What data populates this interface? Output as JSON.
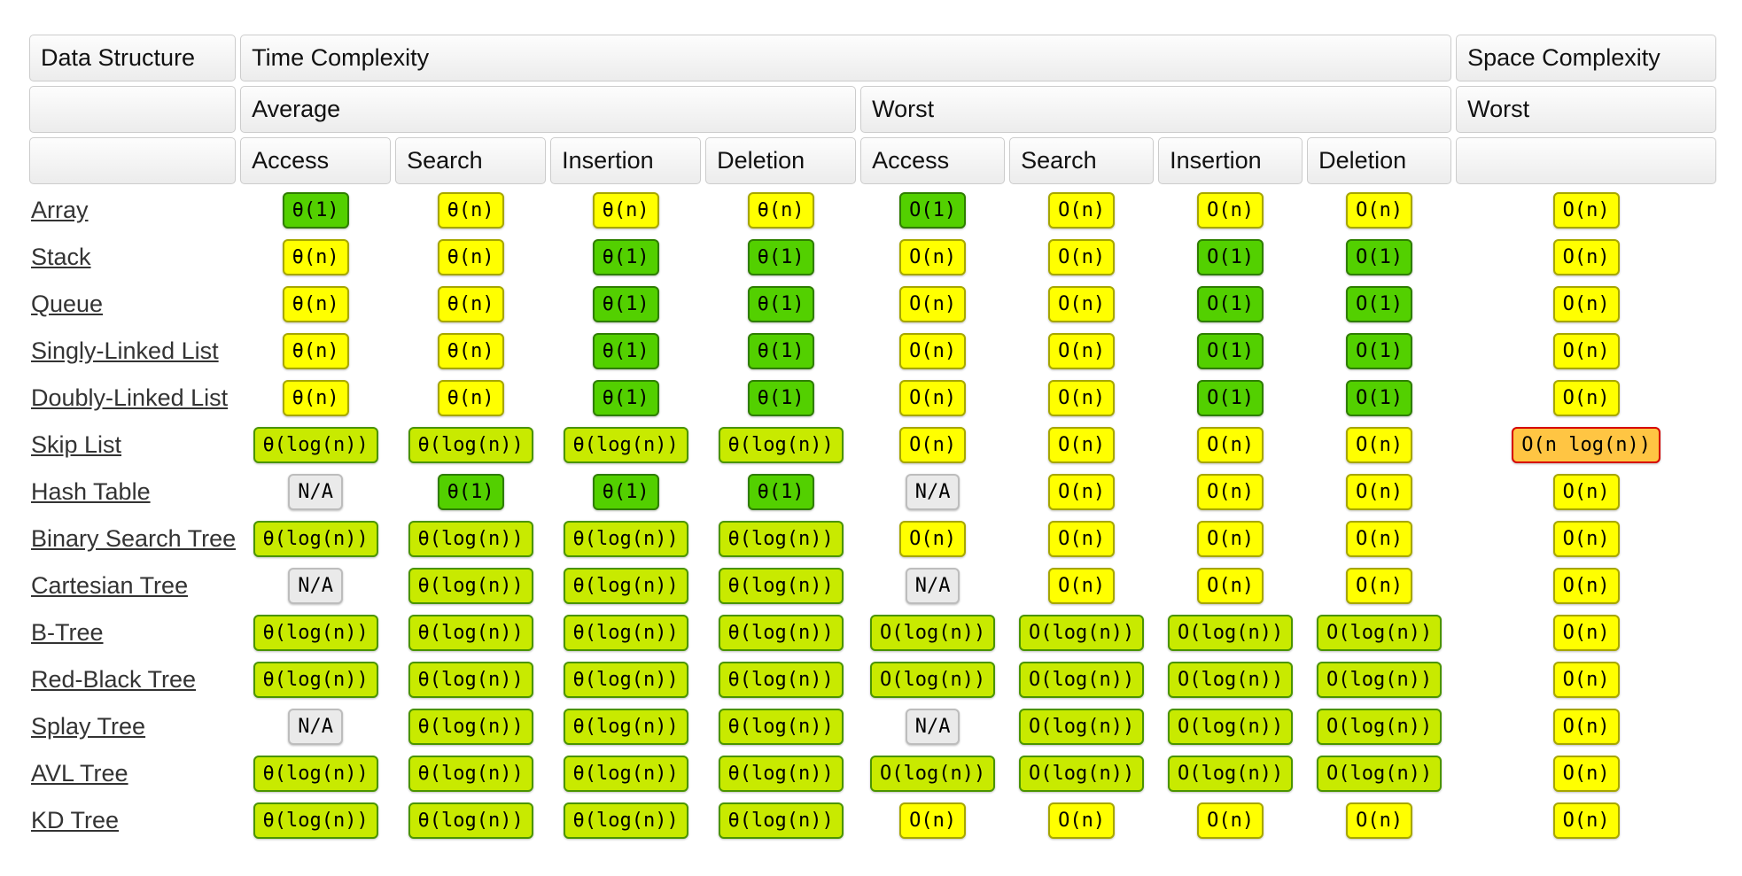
{
  "header": {
    "data_structure": "Data Structure",
    "time_complexity": "Time Complexity",
    "space_complexity": "Space Complexity",
    "average": "Average",
    "worst_time": "Worst",
    "worst_space": "Worst",
    "operations": [
      "Access",
      "Search",
      "Insertion",
      "Deletion",
      "Access",
      "Search",
      "Insertion",
      "Deletion"
    ]
  },
  "colors": {
    "excellent": {
      "bg": "#53d000",
      "border": "#2e7d00"
    },
    "good": {
      "bg": "#c8ea00",
      "border": "#4a9400"
    },
    "fair": {
      "bg": "#ffff00",
      "border": "#a6a600"
    },
    "bad": {
      "bg": "#ffc543",
      "border": "#d60000"
    },
    "na": {
      "bg": "#eaeaea",
      "border": "#bdbdbd"
    }
  },
  "rows": [
    {
      "label": "Array",
      "cells": [
        [
          "θ(1)",
          "excellent"
        ],
        [
          "θ(n)",
          "fair"
        ],
        [
          "θ(n)",
          "fair"
        ],
        [
          "θ(n)",
          "fair"
        ],
        [
          "O(1)",
          "excellent"
        ],
        [
          "O(n)",
          "fair"
        ],
        [
          "O(n)",
          "fair"
        ],
        [
          "O(n)",
          "fair"
        ],
        [
          "O(n)",
          "fair"
        ]
      ]
    },
    {
      "label": "Stack",
      "cells": [
        [
          "θ(n)",
          "fair"
        ],
        [
          "θ(n)",
          "fair"
        ],
        [
          "θ(1)",
          "excellent"
        ],
        [
          "θ(1)",
          "excellent"
        ],
        [
          "O(n)",
          "fair"
        ],
        [
          "O(n)",
          "fair"
        ],
        [
          "O(1)",
          "excellent"
        ],
        [
          "O(1)",
          "excellent"
        ],
        [
          "O(n)",
          "fair"
        ]
      ]
    },
    {
      "label": "Queue",
      "cells": [
        [
          "θ(n)",
          "fair"
        ],
        [
          "θ(n)",
          "fair"
        ],
        [
          "θ(1)",
          "excellent"
        ],
        [
          "θ(1)",
          "excellent"
        ],
        [
          "O(n)",
          "fair"
        ],
        [
          "O(n)",
          "fair"
        ],
        [
          "O(1)",
          "excellent"
        ],
        [
          "O(1)",
          "excellent"
        ],
        [
          "O(n)",
          "fair"
        ]
      ]
    },
    {
      "label": "Singly-Linked List",
      "cells": [
        [
          "θ(n)",
          "fair"
        ],
        [
          "θ(n)",
          "fair"
        ],
        [
          "θ(1)",
          "excellent"
        ],
        [
          "θ(1)",
          "excellent"
        ],
        [
          "O(n)",
          "fair"
        ],
        [
          "O(n)",
          "fair"
        ],
        [
          "O(1)",
          "excellent"
        ],
        [
          "O(1)",
          "excellent"
        ],
        [
          "O(n)",
          "fair"
        ]
      ]
    },
    {
      "label": "Doubly-Linked List",
      "cells": [
        [
          "θ(n)",
          "fair"
        ],
        [
          "θ(n)",
          "fair"
        ],
        [
          "θ(1)",
          "excellent"
        ],
        [
          "θ(1)",
          "excellent"
        ],
        [
          "O(n)",
          "fair"
        ],
        [
          "O(n)",
          "fair"
        ],
        [
          "O(1)",
          "excellent"
        ],
        [
          "O(1)",
          "excellent"
        ],
        [
          "O(n)",
          "fair"
        ]
      ]
    },
    {
      "label": "Skip List",
      "cells": [
        [
          "θ(log(n))",
          "good"
        ],
        [
          "θ(log(n))",
          "good"
        ],
        [
          "θ(log(n))",
          "good"
        ],
        [
          "θ(log(n))",
          "good"
        ],
        [
          "O(n)",
          "fair"
        ],
        [
          "O(n)",
          "fair"
        ],
        [
          "O(n)",
          "fair"
        ],
        [
          "O(n)",
          "fair"
        ],
        [
          "O(n log(n))",
          "bad"
        ]
      ]
    },
    {
      "label": "Hash Table",
      "cells": [
        [
          "N/A",
          "na"
        ],
        [
          "θ(1)",
          "excellent"
        ],
        [
          "θ(1)",
          "excellent"
        ],
        [
          "θ(1)",
          "excellent"
        ],
        [
          "N/A",
          "na"
        ],
        [
          "O(n)",
          "fair"
        ],
        [
          "O(n)",
          "fair"
        ],
        [
          "O(n)",
          "fair"
        ],
        [
          "O(n)",
          "fair"
        ]
      ]
    },
    {
      "label": "Binary Search Tree",
      "cells": [
        [
          "θ(log(n))",
          "good"
        ],
        [
          "θ(log(n))",
          "good"
        ],
        [
          "θ(log(n))",
          "good"
        ],
        [
          "θ(log(n))",
          "good"
        ],
        [
          "O(n)",
          "fair"
        ],
        [
          "O(n)",
          "fair"
        ],
        [
          "O(n)",
          "fair"
        ],
        [
          "O(n)",
          "fair"
        ],
        [
          "O(n)",
          "fair"
        ]
      ]
    },
    {
      "label": "Cartesian Tree",
      "cells": [
        [
          "N/A",
          "na"
        ],
        [
          "θ(log(n))",
          "good"
        ],
        [
          "θ(log(n))",
          "good"
        ],
        [
          "θ(log(n))",
          "good"
        ],
        [
          "N/A",
          "na"
        ],
        [
          "O(n)",
          "fair"
        ],
        [
          "O(n)",
          "fair"
        ],
        [
          "O(n)",
          "fair"
        ],
        [
          "O(n)",
          "fair"
        ]
      ]
    },
    {
      "label": "B-Tree",
      "cells": [
        [
          "θ(log(n))",
          "good"
        ],
        [
          "θ(log(n))",
          "good"
        ],
        [
          "θ(log(n))",
          "good"
        ],
        [
          "θ(log(n))",
          "good"
        ],
        [
          "O(log(n))",
          "good"
        ],
        [
          "O(log(n))",
          "good"
        ],
        [
          "O(log(n))",
          "good"
        ],
        [
          "O(log(n))",
          "good"
        ],
        [
          "O(n)",
          "fair"
        ]
      ]
    },
    {
      "label": "Red-Black Tree",
      "cells": [
        [
          "θ(log(n))",
          "good"
        ],
        [
          "θ(log(n))",
          "good"
        ],
        [
          "θ(log(n))",
          "good"
        ],
        [
          "θ(log(n))",
          "good"
        ],
        [
          "O(log(n))",
          "good"
        ],
        [
          "O(log(n))",
          "good"
        ],
        [
          "O(log(n))",
          "good"
        ],
        [
          "O(log(n))",
          "good"
        ],
        [
          "O(n)",
          "fair"
        ]
      ]
    },
    {
      "label": "Splay Tree",
      "cells": [
        [
          "N/A",
          "na"
        ],
        [
          "θ(log(n))",
          "good"
        ],
        [
          "θ(log(n))",
          "good"
        ],
        [
          "θ(log(n))",
          "good"
        ],
        [
          "N/A",
          "na"
        ],
        [
          "O(log(n))",
          "good"
        ],
        [
          "O(log(n))",
          "good"
        ],
        [
          "O(log(n))",
          "good"
        ],
        [
          "O(n)",
          "fair"
        ]
      ]
    },
    {
      "label": "AVL Tree",
      "cells": [
        [
          "θ(log(n))",
          "good"
        ],
        [
          "θ(log(n))",
          "good"
        ],
        [
          "θ(log(n))",
          "good"
        ],
        [
          "θ(log(n))",
          "good"
        ],
        [
          "O(log(n))",
          "good"
        ],
        [
          "O(log(n))",
          "good"
        ],
        [
          "O(log(n))",
          "good"
        ],
        [
          "O(log(n))",
          "good"
        ],
        [
          "O(n)",
          "fair"
        ]
      ]
    },
    {
      "label": "KD Tree",
      "cells": [
        [
          "θ(log(n))",
          "good"
        ],
        [
          "θ(log(n))",
          "good"
        ],
        [
          "θ(log(n))",
          "good"
        ],
        [
          "θ(log(n))",
          "good"
        ],
        [
          "O(n)",
          "fair"
        ],
        [
          "O(n)",
          "fair"
        ],
        [
          "O(n)",
          "fair"
        ],
        [
          "O(n)",
          "fair"
        ],
        [
          "O(n)",
          "fair"
        ]
      ]
    }
  ]
}
